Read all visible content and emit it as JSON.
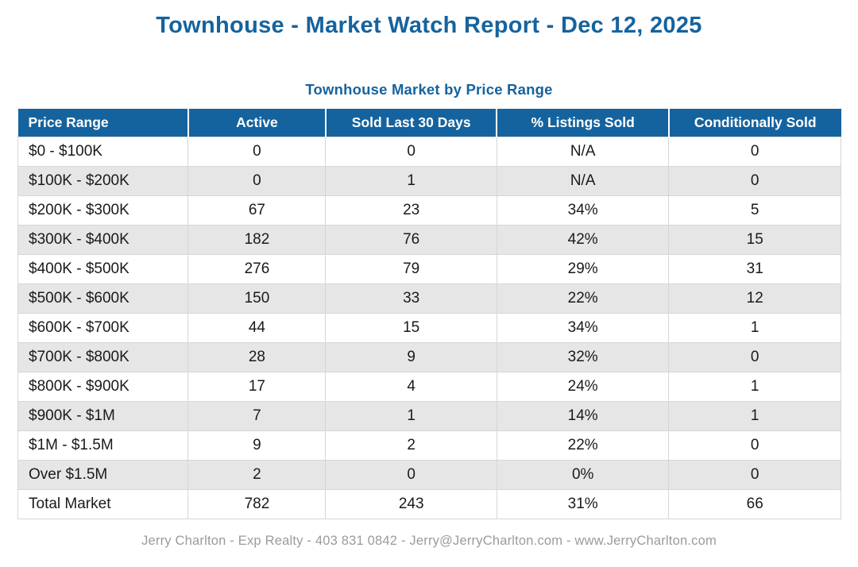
{
  "page": {
    "title": "Townhouse - Market Watch Report - Dec 12, 2025",
    "footer": "Jerry Charlton - Exp Realty - 403 831 0842 - Jerry@JerryCharlton.com - www.JerryCharlton.com"
  },
  "colors": {
    "accent_blue": "#15639E",
    "header_bg": "#15639E",
    "header_text": "#FFFFFF",
    "row_alt_bg": "#E6E6E6",
    "row_bg": "#FFFFFF",
    "cell_border": "#D6D6D6",
    "body_text": "#1A1A1A",
    "footer_text": "#9B9B9B"
  },
  "chart_data": {
    "type": "table",
    "title": "Townhouse Market by Price Range",
    "columns": [
      "Price Range",
      "Active",
      "Sold Last 30 Days",
      "% Listings Sold",
      "Conditionally Sold"
    ],
    "rows": [
      [
        "$0 - $100K",
        "0",
        "0",
        "N/A",
        "0"
      ],
      [
        "$100K - $200K",
        "0",
        "1",
        "N/A",
        "0"
      ],
      [
        "$200K - $300K",
        "67",
        "23",
        "34%",
        "5"
      ],
      [
        "$300K - $400K",
        "182",
        "76",
        "42%",
        "15"
      ],
      [
        "$400K - $500K",
        "276",
        "79",
        "29%",
        "31"
      ],
      [
        "$500K - $600K",
        "150",
        "33",
        "22%",
        "12"
      ],
      [
        "$600K - $700K",
        "44",
        "15",
        "34%",
        "1"
      ],
      [
        "$700K - $800K",
        "28",
        "9",
        "32%",
        "0"
      ],
      [
        "$800K - $900K",
        "17",
        "4",
        "24%",
        "1"
      ],
      [
        "$900K - $1M",
        "7",
        "1",
        "14%",
        "1"
      ],
      [
        "$1M - $1.5M",
        "9",
        "2",
        "22%",
        "0"
      ],
      [
        "Over $1.5M",
        "2",
        "0",
        "0%",
        "0"
      ],
      [
        "Total Market",
        "782",
        "243",
        "31%",
        "66"
      ]
    ]
  }
}
